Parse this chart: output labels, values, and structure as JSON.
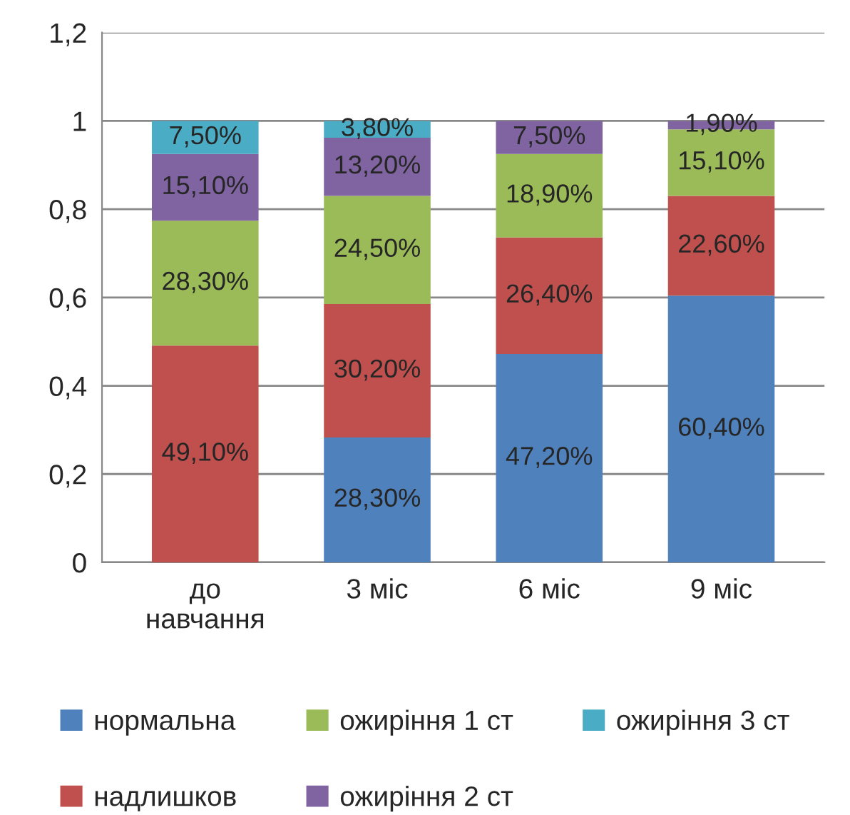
{
  "chart_data": {
    "type": "bar",
    "stacked": true,
    "categories": [
      "до\nнавчання",
      "3 міс",
      "6 міс",
      "9 міс"
    ],
    "series": [
      {
        "name": "нормальна",
        "color": "#4f81bd",
        "values": [
          0,
          0.283,
          0.472,
          0.604
        ],
        "value_labels": [
          null,
          "28,30%",
          "47,20%",
          "60,40%"
        ]
      },
      {
        "name": "надлишков",
        "color": "#c0504d",
        "values": [
          0.491,
          0.302,
          0.264,
          0.226
        ],
        "value_labels": [
          "49,10%",
          "30,20%",
          "26,40%",
          "22,60%"
        ]
      },
      {
        "name": "ожиріння 1 ст",
        "color": "#9bbb59",
        "values": [
          0.283,
          0.245,
          0.189,
          0.151
        ],
        "value_labels": [
          "28,30%",
          "24,50%",
          "18,90%",
          "15,10%"
        ]
      },
      {
        "name": "ожиріння 2 ст",
        "color": "#8064a2",
        "values": [
          0.151,
          0.132,
          0.075,
          0.019
        ],
        "value_labels": [
          "15,10%",
          "13,20%",
          "7,50%",
          "1,90%"
        ]
      },
      {
        "name": "ожиріння 3 ст",
        "color": "#4bacc6",
        "values": [
          0.075,
          0.038,
          0,
          0
        ],
        "value_labels": [
          "7,50%",
          "3,80%",
          null,
          null
        ]
      }
    ],
    "ylim": [
      0,
      1.2
    ],
    "yticks": [
      0,
      {
        "value": 0.2,
        "label": "0,2"
      },
      {
        "value": 0.4,
        "label": "0,4"
      },
      {
        "value": 0.6,
        "label": "0,6"
      },
      {
        "value": 0.8,
        "label": "0,8"
      },
      1,
      {
        "value": 1.2,
        "label": "1,2"
      }
    ],
    "grid": "y",
    "legend": "bottom"
  }
}
